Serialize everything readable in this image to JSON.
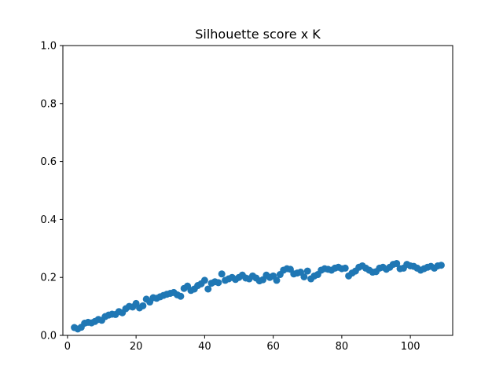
{
  "chart_data": {
    "type": "scatter",
    "title": "Silhouette score x K",
    "xlabel": "",
    "ylabel": "",
    "xlim": [
      -1.35,
      112.35
    ],
    "ylim": [
      0,
      1
    ],
    "xticks": [
      0,
      20,
      40,
      60,
      80,
      100
    ],
    "yticks": [
      0.0,
      0.2,
      0.4,
      0.6,
      0.8,
      1.0
    ],
    "grid": false,
    "marker_color": "#1f77b4",
    "x": [
      2,
      3,
      4,
      5,
      6,
      7,
      8,
      9,
      10,
      11,
      12,
      13,
      14,
      15,
      16,
      17,
      18,
      19,
      20,
      21,
      22,
      23,
      24,
      25,
      26,
      27,
      28,
      29,
      30,
      31,
      32,
      33,
      34,
      35,
      36,
      37,
      38,
      39,
      40,
      41,
      42,
      43,
      44,
      45,
      46,
      47,
      48,
      49,
      50,
      51,
      52,
      53,
      54,
      55,
      56,
      57,
      58,
      59,
      60,
      61,
      62,
      63,
      64,
      65,
      66,
      67,
      68,
      69,
      70,
      71,
      72,
      73,
      74,
      75,
      76,
      77,
      78,
      79,
      80,
      81,
      82,
      83,
      84,
      85,
      86,
      87,
      88,
      89,
      90,
      91,
      92,
      93,
      94,
      95,
      96,
      97,
      98,
      99,
      100,
      101,
      102,
      103,
      104,
      105,
      106,
      107,
      108,
      109
    ],
    "y": [
      0.027,
      0.022,
      0.028,
      0.042,
      0.045,
      0.043,
      0.048,
      0.055,
      0.052,
      0.065,
      0.07,
      0.073,
      0.072,
      0.082,
      0.078,
      0.092,
      0.1,
      0.098,
      0.11,
      0.095,
      0.102,
      0.125,
      0.115,
      0.13,
      0.128,
      0.133,
      0.138,
      0.142,
      0.145,
      0.148,
      0.14,
      0.135,
      0.162,
      0.17,
      0.155,
      0.16,
      0.172,
      0.178,
      0.19,
      0.16,
      0.18,
      0.185,
      0.182,
      0.212,
      0.19,
      0.195,
      0.2,
      0.193,
      0.2,
      0.208,
      0.198,
      0.195,
      0.205,
      0.198,
      0.188,
      0.192,
      0.208,
      0.2,
      0.205,
      0.19,
      0.21,
      0.225,
      0.23,
      0.228,
      0.212,
      0.215,
      0.218,
      0.202,
      0.222,
      0.195,
      0.205,
      0.21,
      0.225,
      0.23,
      0.228,
      0.225,
      0.232,
      0.235,
      0.23,
      0.232,
      0.205,
      0.215,
      0.222,
      0.235,
      0.24,
      0.232,
      0.225,
      0.218,
      0.22,
      0.232,
      0.235,
      0.228,
      0.235,
      0.245,
      0.248,
      0.23,
      0.232,
      0.245,
      0.24,
      0.238,
      0.232,
      0.225,
      0.23,
      0.235,
      0.238,
      0.232,
      0.24,
      0.242
    ]
  }
}
